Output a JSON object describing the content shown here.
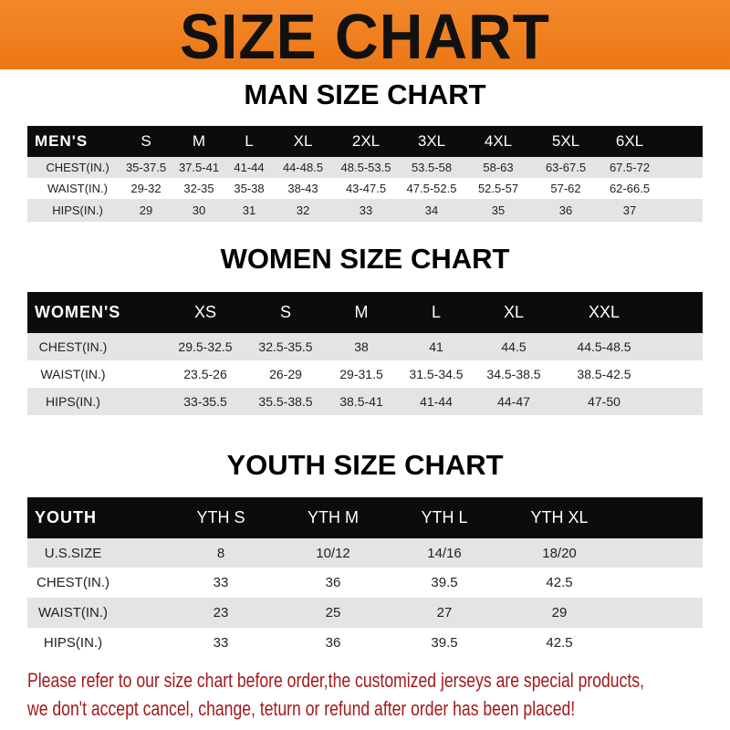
{
  "banner": {
    "title": "SIZE CHART",
    "color": "#ef7f20"
  },
  "men": {
    "title": "MAN SIZE CHART",
    "header": [
      "MEN'S",
      "S",
      "M",
      "L",
      "XL",
      "2XL",
      "3XL",
      "4XL",
      "5XL",
      "6XL"
    ],
    "rows": [
      [
        "CHEST(IN.)",
        "35-37.5",
        "37.5-41",
        "41-44",
        "44-48.5",
        "48.5-53.5",
        "53.5-58",
        "58-63",
        "63-67.5",
        "67.5-72"
      ],
      [
        "WAIST(IN.)",
        "29-32",
        "32-35",
        "35-38",
        "38-43",
        "43-47.5",
        "47.5-52.5",
        "52.5-57",
        "57-62",
        "62-66.5"
      ],
      [
        "HIPS(IN.)",
        "29",
        "30",
        "31",
        "32",
        "33",
        "34",
        "35",
        "36",
        "37"
      ]
    ]
  },
  "women": {
    "title": "WOMEN SIZE CHART",
    "header": [
      "WOMEN'S",
      "XS",
      "S",
      "M",
      "L",
      "XL",
      "XXL"
    ],
    "rows": [
      [
        "CHEST(IN.)",
        "29.5-32.5",
        "32.5-35.5",
        "38",
        "41",
        "44.5",
        "44.5-48.5"
      ],
      [
        "WAIST(IN.)",
        "23.5-26",
        "26-29",
        "29-31.5",
        "31.5-34.5",
        "34.5-38.5",
        "38.5-42.5"
      ],
      [
        "HIPS(IN.)",
        "33-35.5",
        "35.5-38.5",
        "38.5-41",
        "41-44",
        "44-47",
        "47-50"
      ]
    ]
  },
  "youth": {
    "title": "YOUTH SIZE CHART",
    "header": [
      "YOUTH",
      "YTH S",
      "YTH M",
      "YTH L",
      "YTH XL"
    ],
    "rows": [
      [
        "U.S.SIZE",
        "8",
        "10/12",
        "14/16",
        "18/20"
      ],
      [
        "CHEST(IN.)",
        "33",
        "36",
        "39.5",
        "42.5"
      ],
      [
        "WAIST(IN.)",
        "23",
        "25",
        "27",
        "29"
      ],
      [
        "HIPS(IN.)",
        "33",
        "36",
        "39.5",
        "42.5"
      ]
    ]
  },
  "notes": [
    "Please refer to our size chart before order,the customized jerseys are special products,",
    "we don't accept cancel, change, teturn or refund after order has been placed!"
  ],
  "note_color": "#a3191c"
}
